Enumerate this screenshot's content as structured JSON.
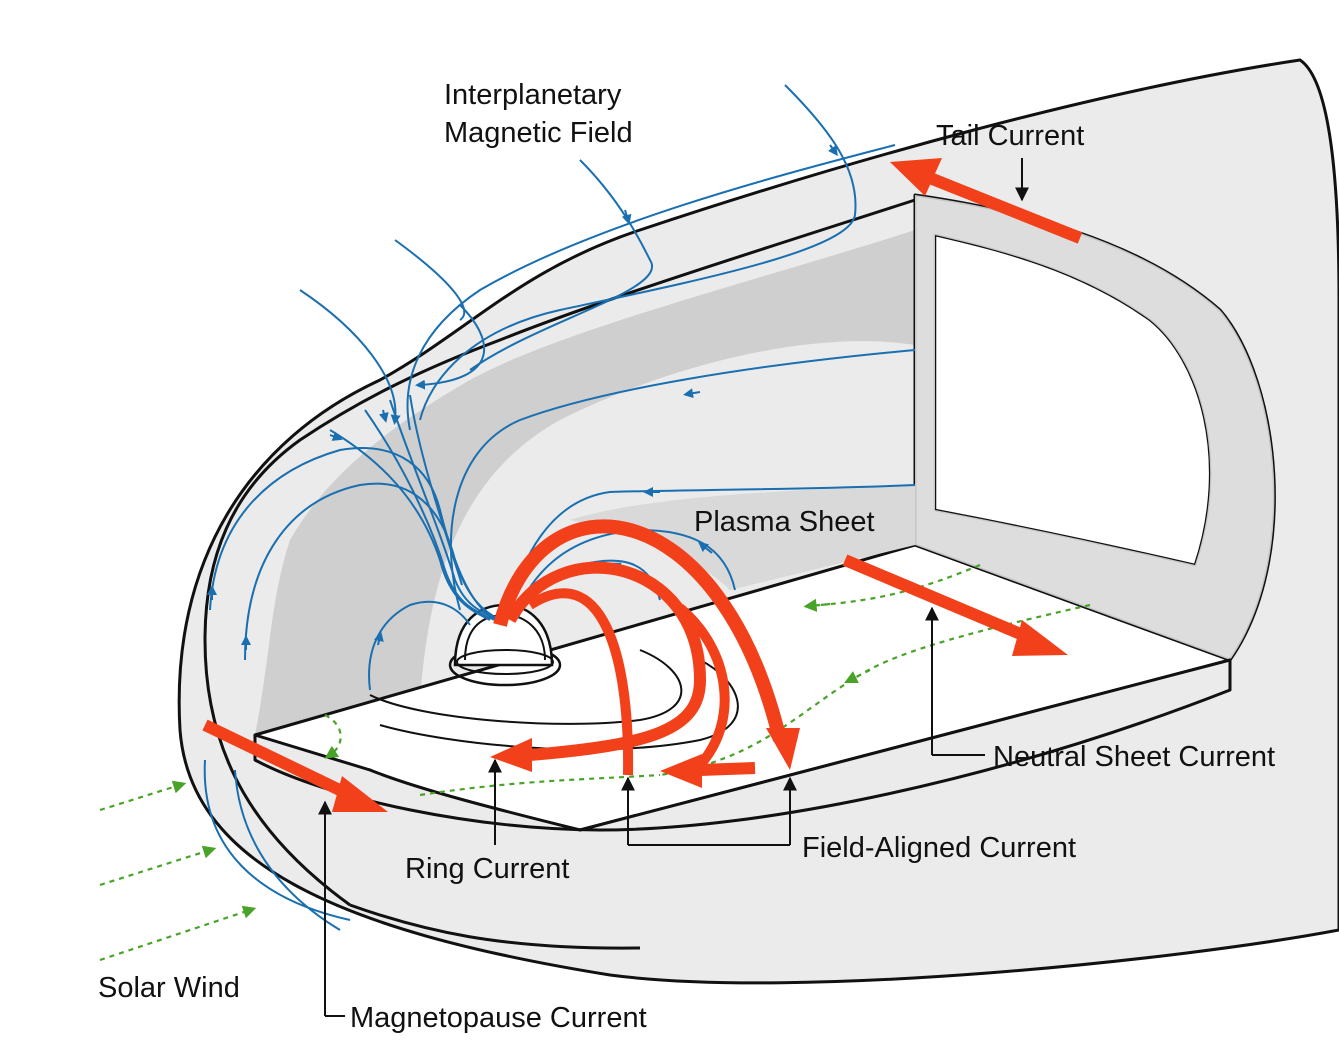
{
  "labels": {
    "imf_line1": "Interplanetary",
    "imf_line2": "Magnetic Field",
    "tail_current": "Tail Current",
    "plasma_sheet": "Plasma Sheet",
    "neutral_sheet_current": "Neutral Sheet Current",
    "field_aligned_current": "Field-Aligned Current",
    "ring_current": "Ring Current",
    "solar_wind": "Solar Wind",
    "magnetopause_current": "Magnetopause Current"
  },
  "colors": {
    "field_line": "#1a6fb0",
    "current": "#f2401a",
    "solar_wind": "#4aa329",
    "shell": "#ebebeb",
    "shell_shadow": "#cfcfcf",
    "outline": "#111111"
  }
}
